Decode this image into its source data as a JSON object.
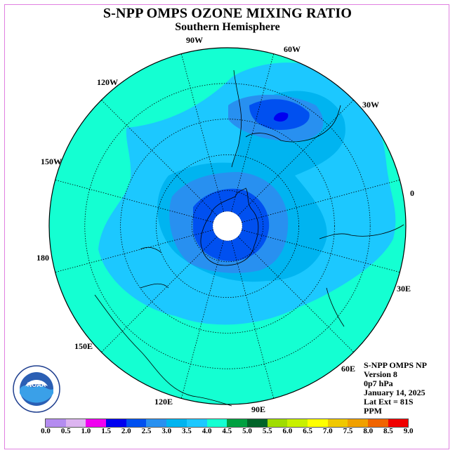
{
  "title": "S-NPP OMPS OZONE MIXING RATIO",
  "subtitle": "Southern Hemisphere",
  "longitude_labels": [
    {
      "text": "90W"
    },
    {
      "text": "60W"
    },
    {
      "text": "30W"
    },
    {
      "text": "0"
    },
    {
      "text": "30E"
    },
    {
      "text": "60E"
    },
    {
      "text": "90E"
    },
    {
      "text": "120E"
    },
    {
      "text": "150E"
    },
    {
      "text": "180"
    },
    {
      "text": "150W"
    },
    {
      "text": "120W"
    }
  ],
  "info": {
    "line1": "S-NPP OMPS NP",
    "line2": "Version 8",
    "line3": "0p7 hPa",
    "line4": "January 14, 2025",
    "line5": "Lat Ext = 81S",
    "line6": "PPM"
  },
  "logo": {
    "text": "NOAA",
    "icon": "noaa-logo-icon"
  },
  "colorbar": {
    "labels": [
      "0.0",
      "0.5",
      "1.0",
      "1.5",
      "2.0",
      "2.5",
      "3.0",
      "3.5",
      "4.0",
      "4.5",
      "5.0",
      "5.5",
      "6.0",
      "6.5",
      "7.0",
      "7.5",
      "8.0",
      "8.5",
      "9.0"
    ],
    "colors": [
      "#b48cf0",
      "#dcb4f0",
      "#f000f0",
      "#0000f0",
      "#0050f0",
      "#2890f0",
      "#00b4f0",
      "#1cc8ff",
      "#14ffd2",
      "#00a040",
      "#006428",
      "#a0dc00",
      "#c8f000",
      "#ffff00",
      "#f0c800",
      "#f0a000",
      "#f06400",
      "#f00000",
      "#7d5a3c"
    ]
  },
  "map_colors": {
    "outer": "#14ffd2",
    "band35": "#1cc8ff",
    "band30": "#00b4f0",
    "band25": "#2890f0",
    "band20": "#0050f0",
    "hole": "#ffffff"
  }
}
